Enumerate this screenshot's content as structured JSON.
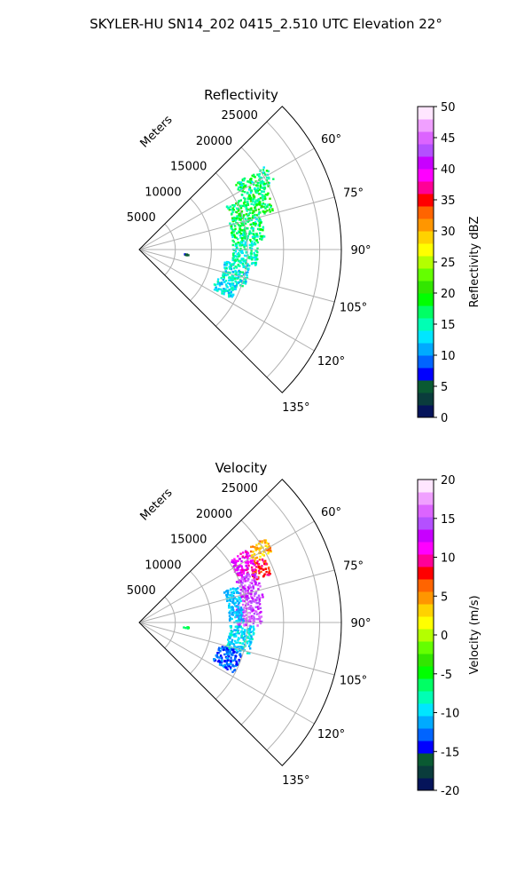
{
  "figure": {
    "title": "SKYLER-HU  SN14_202  0415_2.510 UTC Elevation 22°"
  },
  "chart_data": [
    {
      "type": "heatmap",
      "subtype": "polar-sector-radar-ppi",
      "title": "Reflectivity",
      "radial_label": "Meters",
      "azimuth_range_deg": [
        45,
        135
      ],
      "range_lim_m": [
        0,
        28000
      ],
      "radial_ticks": [
        "5000",
        "10000",
        "15000",
        "20000",
        "25000"
      ],
      "radial_tick_values": [
        5000,
        10000,
        15000,
        20000,
        25000
      ],
      "angle_ticks": [
        "60°",
        "75°",
        "90°",
        "105°",
        "120°",
        "135°"
      ],
      "angle_tick_values": [
        60,
        75,
        90,
        105,
        120,
        135
      ],
      "grid": true,
      "colorbar": {
        "label": "Reflectivity dBZ",
        "min": 0,
        "max": 50,
        "ticks": [
          "0",
          "5",
          "10",
          "15",
          "20",
          "25",
          "30",
          "35",
          "40",
          "45",
          "50"
        ],
        "tick_values": [
          0,
          5,
          10,
          15,
          20,
          25,
          30,
          35,
          40,
          45,
          50
        ],
        "colors": [
          "#05145a",
          "#0a3c3c",
          "#0a5a32",
          "#0000ff",
          "#0064ff",
          "#00aaff",
          "#00e6ff",
          "#00ffb4",
          "#00ff64",
          "#00ff00",
          "#32e600",
          "#64ff00",
          "#b4ff00",
          "#ffff00",
          "#ffd200",
          "#ff9600",
          "#ff6400",
          "#ff0000",
          "#ff0096",
          "#ff00ff",
          "#c800ff",
          "#b450ff",
          "#dc64ff",
          "#f0a0ff",
          "#ffe6ff"
        ]
      },
      "echo_regions": [
        {
          "az_deg": [
            56,
            64
          ],
          "range_m": [
            16000,
            21000
          ],
          "value_dbz": [
            13,
            20
          ]
        },
        {
          "az_deg": [
            64,
            74
          ],
          "range_m": [
            13500,
            19500
          ],
          "value_dbz": [
            14,
            21
          ]
        },
        {
          "az_deg": [
            74,
            86
          ],
          "range_m": [
            13000,
            17500
          ],
          "value_dbz": [
            13,
            20
          ]
        },
        {
          "az_deg": [
            86,
            98
          ],
          "range_m": [
            13000,
            16500
          ],
          "value_dbz": [
            12,
            18
          ]
        },
        {
          "az_deg": [
            98,
            110
          ],
          "range_m": [
            12000,
            15500
          ],
          "value_dbz": [
            11,
            17
          ]
        },
        {
          "az_deg": [
            110,
            118
          ],
          "range_m": [
            11500,
            14500
          ],
          "value_dbz": [
            10,
            16
          ]
        },
        {
          "az_deg": [
            95,
            97
          ],
          "range_m": [
            6000,
            7000
          ],
          "value_dbz": [
            4,
            7
          ]
        }
      ]
    },
    {
      "type": "heatmap",
      "subtype": "polar-sector-radar-ppi",
      "title": "Velocity",
      "radial_label": "Meters",
      "azimuth_range_deg": [
        45,
        135
      ],
      "range_lim_m": [
        0,
        28000
      ],
      "radial_ticks": [
        "5000",
        "10000",
        "15000",
        "20000",
        "25000"
      ],
      "radial_tick_values": [
        5000,
        10000,
        15000,
        20000,
        25000
      ],
      "angle_ticks": [
        "60°",
        "75°",
        "90°",
        "105°",
        "120°",
        "135°"
      ],
      "angle_tick_values": [
        60,
        75,
        90,
        105,
        120,
        135
      ],
      "grid": true,
      "colorbar": {
        "label": "Velocity (m/s)",
        "min": -20,
        "max": 20,
        "ticks": [
          "-20",
          "-15",
          "-10",
          "-5",
          "0",
          "5",
          "10",
          "15",
          "20"
        ],
        "tick_values": [
          -20,
          -15,
          -10,
          -5,
          0,
          5,
          10,
          15,
          20
        ],
        "colors": [
          "#05145a",
          "#0a3c3c",
          "#0a5a32",
          "#0000ff",
          "#0064ff",
          "#00aaff",
          "#00e6ff",
          "#00ffb4",
          "#00ff64",
          "#00ff00",
          "#32e600",
          "#64ff00",
          "#b4ff00",
          "#ffff00",
          "#ffd200",
          "#ff9600",
          "#ff6400",
          "#ff0000",
          "#ff0096",
          "#ff00ff",
          "#c800ff",
          "#b450ff",
          "#dc64ff",
          "#f0a0ff",
          "#ffe6ff"
        ]
      },
      "echo_regions": [
        {
          "az_deg": [
            56,
            62
          ],
          "range_m": [
            18000,
            21000
          ],
          "value_ms": [
            2,
            6
          ]
        },
        {
          "az_deg": [
            62,
            70
          ],
          "range_m": [
            17000,
            19500
          ],
          "value_ms": [
            6,
            10
          ]
        },
        {
          "az_deg": [
            56,
            66
          ],
          "range_m": [
            15000,
            18000
          ],
          "value_ms": [
            10,
            13
          ]
        },
        {
          "az_deg": [
            66,
            80
          ],
          "range_m": [
            14500,
            17500
          ],
          "value_ms": [
            12,
            16
          ]
        },
        {
          "az_deg": [
            80,
            92
          ],
          "range_m": [
            13500,
            17000
          ],
          "value_ms": [
            13,
            17
          ]
        },
        {
          "az_deg": [
            70,
            90
          ],
          "range_m": [
            12500,
            14500
          ],
          "value_ms": [
            -12,
            -9
          ]
        },
        {
          "az_deg": [
            92,
            106
          ],
          "range_m": [
            12500,
            16000
          ],
          "value_ms": [
            -12,
            -8
          ]
        },
        {
          "az_deg": [
            106,
            118
          ],
          "range_m": [
            11500,
            15000
          ],
          "value_ms": [
            -15,
            -11
          ]
        },
        {
          "az_deg": [
            95,
            97
          ],
          "range_m": [
            6000,
            7000
          ],
          "value_ms": [
            -7,
            -5
          ]
        }
      ]
    }
  ]
}
